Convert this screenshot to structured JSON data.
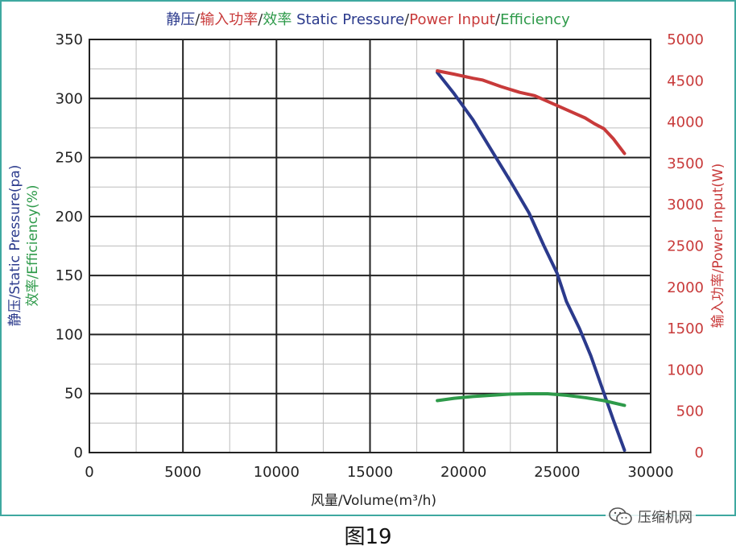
{
  "caption": "图19",
  "watermark": {
    "text": "压缩机网",
    "icon": "wechat-icon"
  },
  "colors": {
    "pressure": "#2b3a8c",
    "power": "#c83a3a",
    "efficiency": "#2e9a4a",
    "grid_major": "#222222",
    "grid_minor": "#bdbdbd",
    "frame": "#3fa8a0"
  },
  "chart_data": {
    "type": "line",
    "title_parts": [
      {
        "text": "静压",
        "series": "pressure"
      },
      {
        "text": "/",
        "series": "neutral"
      },
      {
        "text": "输入功率",
        "series": "power"
      },
      {
        "text": "/",
        "series": "neutral"
      },
      {
        "text": "效率 ",
        "series": "efficiency"
      },
      {
        "text": "Static Pressure",
        "series": "pressure"
      },
      {
        "text": "/",
        "series": "neutral"
      },
      {
        "text": "Power Input",
        "series": "power"
      },
      {
        "text": "/",
        "series": "neutral"
      },
      {
        "text": "Efficiency",
        "series": "efficiency"
      }
    ],
    "xlabel": "风量/Volume(m³/h)",
    "ylabel_left_line1": "静压/Static Pressure(pa)",
    "ylabel_left_line2": "效率/Efficiency(%)",
    "ylabel_right": "输入功率/Power Input(W)",
    "xlim": [
      0,
      30000
    ],
    "ylim_left": [
      0,
      350
    ],
    "ylim_right": [
      0,
      5000
    ],
    "x_ticks": [
      0,
      5000,
      10000,
      15000,
      20000,
      25000,
      30000
    ],
    "y_left_ticks": [
      0,
      50,
      100,
      150,
      200,
      250,
      300,
      350
    ],
    "y_right_ticks": [
      0,
      500,
      1000,
      1500,
      2000,
      2500,
      3000,
      3500,
      4000,
      4500,
      5000
    ],
    "grid": true,
    "series": [
      {
        "key": "pressure",
        "axis": "left",
        "x": [
          18600,
          19500,
          20500,
          21500,
          22500,
          23500,
          24300,
          25000,
          25500,
          26200,
          26800,
          27400,
          28000,
          28600
        ],
        "y": [
          322,
          304,
          282,
          256,
          230,
          203,
          175,
          152,
          128,
          105,
          82,
          55,
          28,
          2
        ]
      },
      {
        "key": "power",
        "axis": "right",
        "x": [
          18600,
          19500,
          20500,
          21000,
          22000,
          23000,
          23800,
          24300,
          25000,
          25800,
          26500,
          27000,
          27500,
          28000,
          28600
        ],
        "y": [
          4620,
          4580,
          4530,
          4510,
          4430,
          4360,
          4320,
          4270,
          4200,
          4120,
          4050,
          3980,
          3920,
          3800,
          3620
        ]
      },
      {
        "key": "efficiency",
        "axis": "left",
        "x": [
          18600,
          19500,
          20500,
          21500,
          22500,
          23500,
          24500,
          25500,
          26500,
          27500,
          28600
        ],
        "y": [
          44,
          46,
          47.5,
          48.5,
          49.5,
          49.8,
          49.8,
          48.5,
          46.5,
          44,
          40
        ]
      }
    ]
  }
}
